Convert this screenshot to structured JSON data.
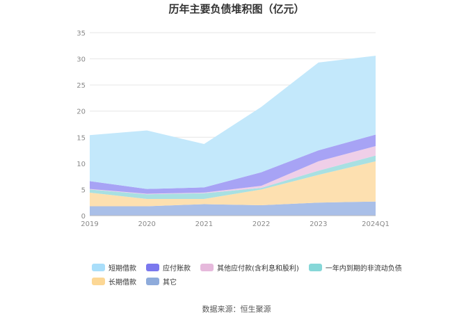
{
  "chart_data": {
    "type": "area",
    "title": "历年主要负债堆积图（亿元）",
    "categories": [
      "2019",
      "2020",
      "2021",
      "2022",
      "2023",
      "2024Q1"
    ],
    "ylim": [
      0,
      35
    ],
    "yticks": [
      0,
      5,
      10,
      15,
      20,
      25,
      30,
      35
    ],
    "stacked": true,
    "grid": true,
    "legend_position": "bottom",
    "series": [
      {
        "name": "其它",
        "color": "#a9bfe8",
        "values": [
          1.8,
          1.8,
          2.2,
          2.0,
          2.5,
          2.7
        ]
      },
      {
        "name": "长期借款",
        "color": "#fde0b0",
        "values": [
          2.6,
          1.4,
          1.0,
          3.0,
          5.3,
          7.7
        ]
      },
      {
        "name": "一年内到期的非流动负债",
        "color": "#a8e0e2",
        "values": [
          0.6,
          0.9,
          1.1,
          0.3,
          0.8,
          1.1
        ]
      },
      {
        "name": "其他应付款(含利息和股利)",
        "color": "#efcfe8",
        "values": [
          0.1,
          0.1,
          0.1,
          0.4,
          1.8,
          1.8
        ]
      },
      {
        "name": "应付账款",
        "color": "#a7a3f5",
        "values": [
          1.5,
          0.9,
          1.0,
          2.6,
          2.1,
          2.2
        ]
      },
      {
        "name": "短期借款",
        "color": "#c3e8fb",
        "values": [
          8.8,
          11.2,
          8.3,
          12.5,
          16.8,
          15.1
        ]
      }
    ]
  },
  "legend": [
    {
      "label": "短期借款",
      "color": "#a9defa"
    },
    {
      "label": "应付账款",
      "color": "#7b78ee"
    },
    {
      "label": "其他应付款(含利息和股利)",
      "color": "#e6b9dc"
    },
    {
      "label": "一年内到期的非流动负债",
      "color": "#86d7d8"
    },
    {
      "label": "长期借款",
      "color": "#fcd795"
    },
    {
      "label": "其它",
      "color": "#8eabdb"
    }
  ],
  "source": "数据来源：恒生聚源"
}
